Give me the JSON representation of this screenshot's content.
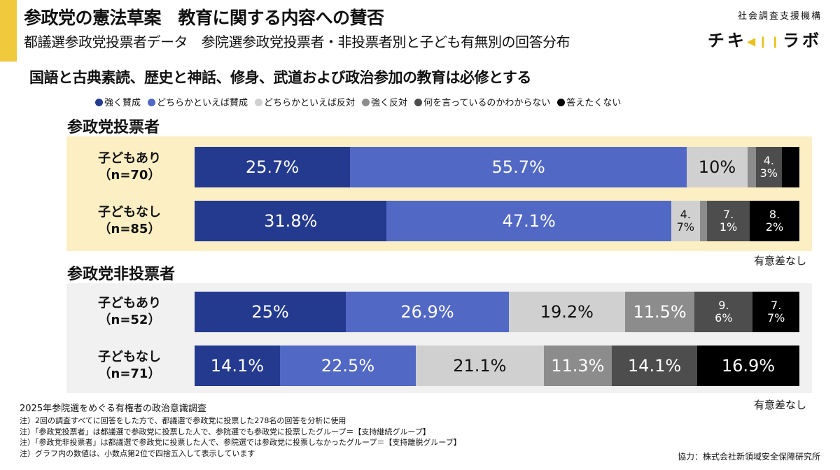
{
  "header": {
    "title": "参政党の憲法草案　教育に関する内容への賛否",
    "subtitle": "都議選参政党投票者データ　参院選参政党投票者・非投票者別と子ども有無別の回答分布",
    "org": "社会調査支援機構",
    "logo_left": "チキ",
    "logo_right": "ラボ"
  },
  "chart_data": {
    "type": "bar",
    "stacked": true,
    "orientation": "horizontal",
    "title": "国語と古典素読、歴史と神話、修身、武道および政治参加の教育は必修とする",
    "legend": [
      {
        "name": "強く賛成",
        "color": "#233a8f"
      },
      {
        "name": "どちらかといえば賛成",
        "color": "#5168c4"
      },
      {
        "name": "どちらかといえば反対",
        "color": "#d0d0d0"
      },
      {
        "name": "強く反対",
        "color": "#8c8c8c"
      },
      {
        "name": "何を言っているのかわからない",
        "color": "#4d4d4d"
      },
      {
        "name": "答えたくない",
        "color": "#000000"
      }
    ],
    "groups": [
      {
        "title": "参政党投票者",
        "note": "有意差なし",
        "rows": [
          {
            "label1": "子どもあり",
            "label2": "（n=70）",
            "values": [
              25.7,
              55.7,
              10,
              1.4,
              4.3,
              2.9
            ],
            "labels": [
              "25.7%",
              "55.7%",
              "10%",
              "",
              "4.3%",
              ""
            ]
          },
          {
            "label1": "子どもなし",
            "label2": "（n=85）",
            "values": [
              31.8,
              47.1,
              4.7,
              1.2,
              7.1,
              8.2
            ],
            "labels": [
              "31.8%",
              "47.1%",
              "4.7%",
              "",
              "7.1%",
              "8.2%"
            ]
          }
        ]
      },
      {
        "title": "参政党非投票者",
        "note": "有意差なし",
        "rows": [
          {
            "label1": "子どもあり",
            "label2": "（n=52）",
            "values": [
              25,
              26.9,
              19.2,
              11.5,
              9.6,
              7.7
            ],
            "labels": [
              "25%",
              "26.9%",
              "19.2%",
              "11.5%",
              "9.6%",
              "7.7%"
            ]
          },
          {
            "label1": "子どもなし",
            "label2": "（n=71）",
            "values": [
              14.1,
              22.5,
              21.1,
              11.3,
              14.1,
              16.9
            ],
            "labels": [
              "14.1%",
              "22.5%",
              "21.1%",
              "11.3%",
              "14.1%",
              "16.9%"
            ]
          }
        ]
      }
    ]
  },
  "footer": {
    "source": "2025年参院選をめぐる有権者の政治意識調査",
    "notes": [
      "注）2回の調査すべてに回答をした方で、都議選で参政党に投票した278名の回答を分析に使用",
      "注）「参政党投票者」は都議選で参政党に投票した人で、参院選でも参政党に投票したグループ＝【支持継続グループ】",
      "注）「参政党非投票者」は都議選で参政党に投票した人で、参院選では参政党に投票しなかったグループ＝【支持離脱グループ】",
      "注）グラフ内の数値は、小数点第2位で四捨五入して表示しています"
    ],
    "credit": "協力：株式会社新領域安全保障研究所"
  }
}
